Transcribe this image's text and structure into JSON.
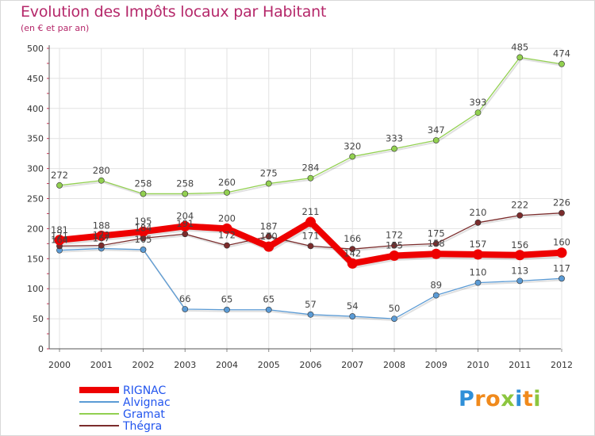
{
  "title": "Evolution des Impôts locaux par Habitant",
  "subtitle": "(en € et par an)",
  "logo": {
    "letters": [
      "P",
      "r",
      "o",
      "x",
      "i",
      "t",
      "i"
    ],
    "colors": [
      "#2f8fd8",
      "#f08a1c",
      "#f08a1c",
      "#8cc63f",
      "#2f8fd8",
      "#f08a1c",
      "#8cc63f"
    ]
  },
  "chart_data": {
    "type": "line",
    "x": [
      "2000",
      "2001",
      "2002",
      "2003",
      "2004",
      "2005",
      "2006",
      "2007",
      "2008",
      "2009",
      "2010",
      "2011",
      "2012"
    ],
    "y_ticks": [
      "0",
      "50",
      "100",
      "150",
      "200",
      "250",
      "300",
      "350",
      "400",
      "450",
      "500"
    ],
    "ylim": [
      0,
      500
    ],
    "grid": true,
    "legend_position": "bottom-left",
    "series": [
      {
        "name": "RIGNAC",
        "color": "#ee0000",
        "values": [
          181,
          188,
          195,
          204,
          200,
          170,
          211,
          142,
          155,
          158,
          157,
          156,
          160
        ],
        "labels": [
          "181",
          "188",
          "195",
          "204",
          "200",
          "170",
          "211",
          "142",
          "155",
          "158",
          "157",
          "156",
          "160"
        ]
      },
      {
        "name": "Alvignac",
        "color": "#5b9bd5",
        "values": [
          164,
          167,
          165,
          66,
          65,
          65,
          57,
          54,
          50,
          89,
          110,
          113,
          117
        ],
        "labels": [
          "164",
          "167",
          "165",
          "66",
          "65",
          "65",
          "57",
          "54",
          "50",
          "89",
          "110",
          "113",
          "117"
        ]
      },
      {
        "name": "Gramat",
        "color": "#92d050",
        "values": [
          272,
          280,
          258,
          258,
          260,
          275,
          284,
          320,
          333,
          347,
          393,
          485,
          474
        ],
        "labels": [
          "272",
          "280",
          "258",
          "258",
          "260",
          "275",
          "284",
          "320",
          "333",
          "347",
          "393",
          "485",
          "474"
        ]
      },
      {
        "name": "Thégra",
        "color": "#7b2c2c",
        "values": [
          171,
          172,
          184,
          191,
          172,
          187,
          171,
          166,
          172,
          175,
          210,
          222,
          226
        ],
        "labels": [
          "171",
          "172",
          "184",
          "191",
          "172",
          "187",
          "171",
          "166",
          "172",
          "175",
          "210",
          "222",
          "226"
        ]
      }
    ]
  }
}
